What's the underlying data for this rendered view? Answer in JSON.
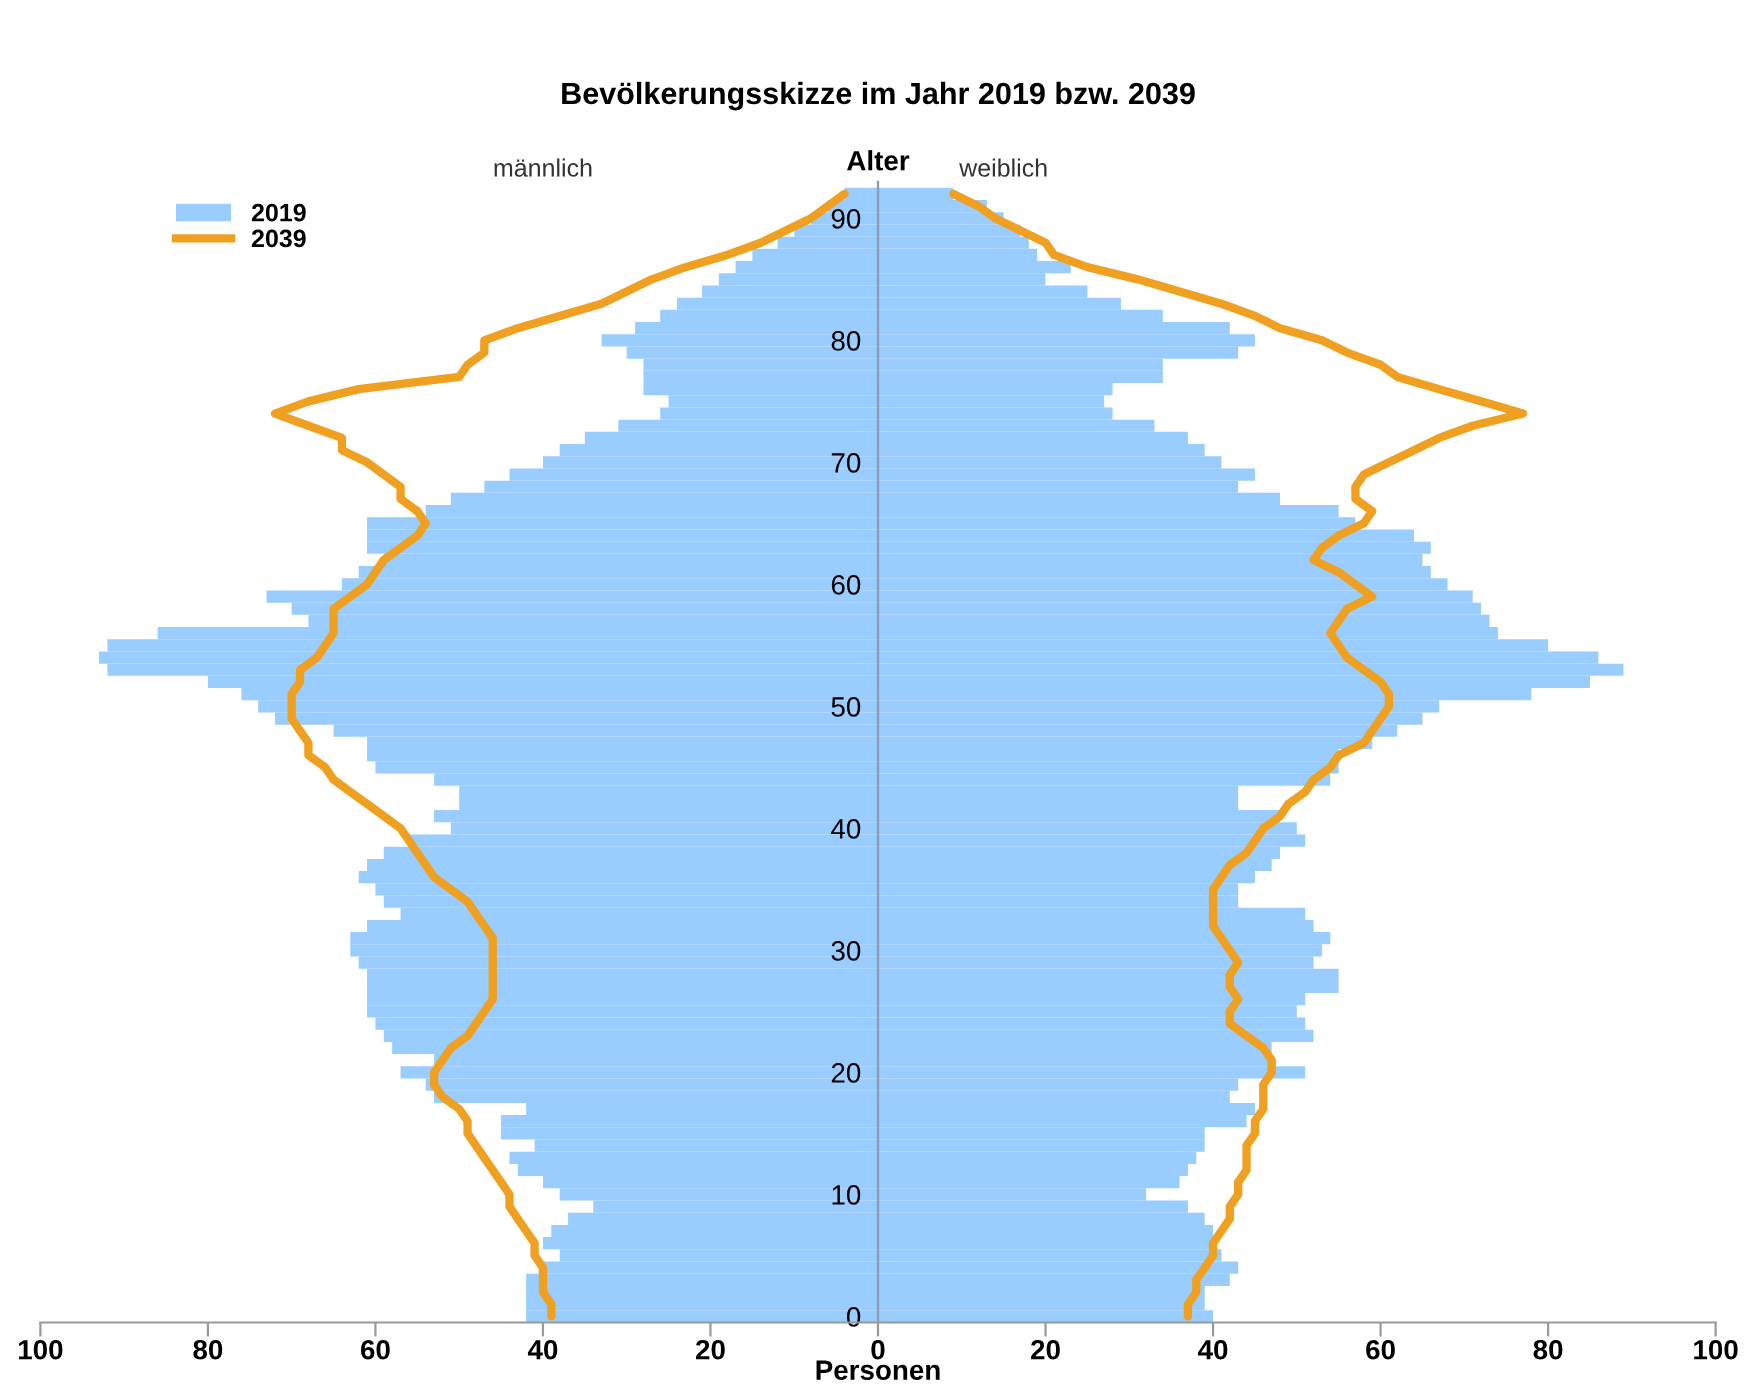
{
  "chart_data": {
    "type": "bar",
    "orientation": "horizontal",
    "title": "Bevölkerungsskizze im Jahr 2019 bzw. 2039",
    "xlabel": "Personen",
    "ylabel": "Alter",
    "annotations": [
      "männlich",
      "weiblich"
    ],
    "x": [
      0,
      1,
      2,
      3,
      4,
      5,
      6,
      7,
      8,
      9,
      10,
      11,
      12,
      13,
      14,
      15,
      16,
      17,
      18,
      19,
      20,
      21,
      22,
      23,
      24,
      25,
      26,
      27,
      28,
      29,
      30,
      31,
      32,
      33,
      34,
      35,
      36,
      37,
      38,
      39,
      40,
      41,
      42,
      43,
      44,
      45,
      46,
      47,
      48,
      49,
      50,
      51,
      52,
      53,
      54,
      55,
      56,
      57,
      58,
      59,
      60,
      61,
      62,
      63,
      64,
      65,
      66,
      67,
      68,
      69,
      70,
      71,
      72,
      73,
      74,
      75,
      76,
      77,
      78,
      79,
      80,
      81,
      82,
      83,
      84,
      85,
      86,
      87,
      88,
      89,
      90,
      91,
      92
    ],
    "series": [
      {
        "name": "2019",
        "color": "#99ccff",
        "values": [
          -42,
          -42,
          -42,
          -42,
          -40,
          -38,
          -40,
          -39,
          -37,
          -34,
          -38,
          -40,
          -43,
          -44,
          -41,
          -45,
          -45,
          -42,
          -53,
          -54,
          -57,
          -53,
          -58,
          -59,
          -60,
          -61,
          -61,
          -61,
          -61,
          -62,
          -63,
          -63,
          -61,
          -57,
          -59,
          -60,
          -62,
          -61,
          -59,
          -56,
          -51,
          -53,
          -50,
          -50,
          -53,
          -60,
          -61,
          -61,
          -65,
          -72,
          -74,
          -76,
          -80,
          -92,
          -93,
          -92,
          -86,
          -68,
          -70,
          -73,
          -64,
          -62,
          -59,
          -61,
          -61,
          -61,
          -54,
          -51,
          -47,
          -44,
          -40,
          -38,
          -35,
          -31,
          -26,
          -25,
          -28,
          -28,
          -28,
          -30,
          -33,
          -29,
          -26,
          -24,
          -21,
          -19,
          -17,
          -15,
          -12,
          -10,
          -8,
          -6,
          -4
        ]
      },
      {
        "color": "#99ccff",
        "values": [
          40,
          39,
          39,
          42,
          43,
          41,
          40,
          40,
          39,
          37,
          32,
          36,
          37,
          38,
          39,
          39,
          44,
          45,
          42,
          43,
          51,
          47,
          47,
          52,
          51,
          50,
          51,
          55,
          55,
          52,
          53,
          54,
          52,
          51,
          43,
          43,
          45,
          47,
          48,
          51,
          50,
          48,
          43,
          43,
          54,
          55,
          55,
          59,
          62,
          65,
          67,
          78,
          85,
          89,
          86,
          80,
          74,
          73,
          72,
          71,
          68,
          66,
          65,
          66,
          64,
          57,
          55,
          48,
          43,
          45,
          41,
          39,
          37,
          33,
          28,
          27,
          28,
          34,
          34,
          43,
          45,
          42,
          34,
          29,
          25,
          20,
          23,
          19,
          18,
          17,
          15,
          13,
          9
        ]
      },
      {
        "type": "line",
        "name": "2039",
        "color": "#f0a020",
        "values": [
          -39,
          -39,
          -40,
          -40,
          -40,
          -41,
          -41,
          -42,
          -43,
          -44,
          -44,
          -45,
          -46,
          -47,
          -48,
          -49,
          -49,
          -50,
          -52,
          -53,
          -53,
          -52,
          -51,
          -49,
          -48,
          -47,
          -46,
          -46,
          -46,
          -46,
          -46,
          -46,
          -47,
          -48,
          -49,
          -51,
          -53,
          -54,
          -55,
          -56,
          -57,
          -59,
          -61,
          -63,
          -65,
          -66,
          -68,
          -68,
          -69,
          -70,
          -70,
          -70,
          -69,
          -69,
          -67,
          -66,
          -65,
          -65,
          -65,
          -63,
          -61,
          -60,
          -59,
          -57,
          -55,
          -54,
          -55,
          -57,
          -57,
          -59,
          -61,
          -64,
          -64,
          -68,
          -72,
          -68,
          -62,
          -50,
          -49,
          -47,
          -47,
          -43,
          -38,
          -33,
          -30,
          -27,
          -23,
          -18,
          -14,
          -11,
          -8,
          -6,
          -4
        ]
      },
      {
        "type": "line",
        "color": "#f0a020",
        "values": [
          37,
          37,
          38,
          38,
          39,
          40,
          40,
          41,
          42,
          42,
          43,
          43,
          44,
          44,
          44,
          45,
          45,
          46,
          46,
          46,
          47,
          47,
          46,
          44,
          42,
          42,
          43,
          42,
          42,
          43,
          42,
          41,
          40,
          40,
          40,
          40,
          41,
          42,
          44,
          45,
          46,
          48,
          49,
          51,
          52,
          54,
          55,
          58,
          59,
          60,
          61,
          61,
          60,
          58,
          56,
          55,
          54,
          55,
          56,
          59,
          57,
          55,
          52,
          53,
          55,
          58,
          59,
          57,
          57,
          58,
          61,
          64,
          67,
          71,
          77,
          72,
          67,
          62,
          60,
          56,
          53,
          48,
          45,
          41,
          36,
          31,
          25,
          21,
          20,
          17,
          14,
          12,
          9
        ]
      }
    ],
    "xlim": [
      -100,
      100
    ],
    "xticks": [
      {
        "value": -100,
        "label": "100"
      },
      {
        "value": -80,
        "label": "80"
      },
      {
        "value": -60,
        "label": "60"
      },
      {
        "value": -40,
        "label": "40"
      },
      {
        "value": -20,
        "label": "20"
      },
      0,
      20,
      40,
      60,
      80,
      100
    ],
    "ylim": [
      -0.5,
      93
    ],
    "yticks": [
      0,
      10,
      20,
      30,
      40,
      50,
      60,
      70,
      80,
      90
    ],
    "legend": "top left",
    "grid": false,
    "stacked": true
  }
}
